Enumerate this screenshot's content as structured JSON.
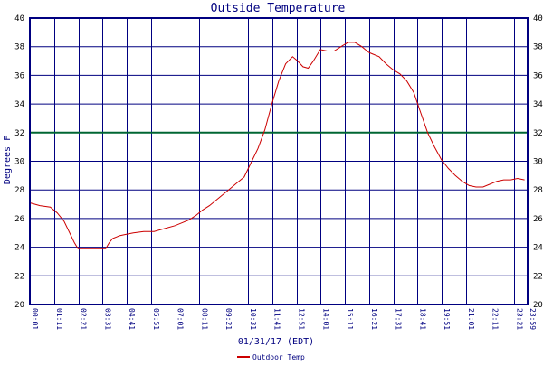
{
  "chart_data": {
    "type": "line",
    "title": "Outside Temperature",
    "xlabel": "01/31/17 (EDT)",
    "ylabel": "Degrees F",
    "ylim": [
      20,
      40
    ],
    "y_ticks": [
      20,
      22,
      24,
      26,
      28,
      30,
      32,
      34,
      36,
      38,
      40
    ],
    "x_ticks": [
      "00:01",
      "01:11",
      "02:21",
      "03:31",
      "04:41",
      "05:51",
      "07:01",
      "08:11",
      "09:21",
      "10:31",
      "11:41",
      "12:51",
      "14:01",
      "15:11",
      "16:21",
      "17:31",
      "18:41",
      "19:51",
      "21:01",
      "22:11",
      "23:21",
      "23:59"
    ],
    "x_range_minutes": [
      1,
      1439
    ],
    "reference_line": {
      "value": 32,
      "color": "#006633"
    },
    "grid": true,
    "legend_position": "bottom-left",
    "colors": {
      "frame": "#000080",
      "series": "#cc0000",
      "background": "#ffffff"
    },
    "series": [
      {
        "name": "Outdoor Temp",
        "x": [
          "00:01",
          "00:30",
          "01:00",
          "01:20",
          "01:40",
          "02:00",
          "02:10",
          "02:20",
          "02:40",
          "03:00",
          "03:20",
          "03:40",
          "03:50",
          "04:00",
          "04:20",
          "04:40",
          "05:00",
          "05:30",
          "06:00",
          "06:30",
          "07:00",
          "07:20",
          "07:40",
          "08:00",
          "08:20",
          "08:40",
          "09:00",
          "09:20",
          "09:40",
          "10:00",
          "10:20",
          "10:40",
          "11:00",
          "11:20",
          "11:40",
          "12:00",
          "12:20",
          "12:40",
          "12:55",
          "13:10",
          "13:25",
          "13:40",
          "14:00",
          "14:20",
          "14:40",
          "15:00",
          "15:20",
          "15:40",
          "16:00",
          "16:10",
          "16:20",
          "16:30",
          "16:50",
          "17:10",
          "17:30",
          "17:50",
          "18:10",
          "18:30",
          "18:50",
          "19:10",
          "19:30",
          "19:50",
          "20:10",
          "20:30",
          "20:50",
          "21:10",
          "21:30",
          "21:50",
          "22:10",
          "22:30",
          "22:50",
          "23:10",
          "23:30",
          "23:50"
        ],
        "values": [
          27.1,
          26.9,
          26.8,
          26.4,
          25.8,
          24.8,
          24.3,
          23.9,
          23.9,
          23.9,
          23.9,
          23.9,
          24.3,
          24.6,
          24.8,
          24.9,
          25.0,
          25.1,
          25.1,
          25.3,
          25.5,
          25.7,
          25.9,
          26.2,
          26.6,
          26.9,
          27.3,
          27.7,
          28.1,
          28.5,
          28.9,
          29.9,
          30.9,
          32.2,
          34.0,
          35.6,
          36.8,
          37.3,
          37.0,
          36.6,
          36.5,
          37.0,
          37.8,
          37.7,
          37.7,
          38.0,
          38.3,
          38.3,
          38.0,
          37.8,
          37.6,
          37.5,
          37.3,
          36.8,
          36.4,
          36.1,
          35.6,
          34.8,
          33.4,
          32.0,
          31.0,
          30.1,
          29.5,
          29.0,
          28.6,
          28.3,
          28.2,
          28.2,
          28.4,
          28.6,
          28.7,
          28.7,
          28.8,
          28.7
        ]
      }
    ]
  }
}
